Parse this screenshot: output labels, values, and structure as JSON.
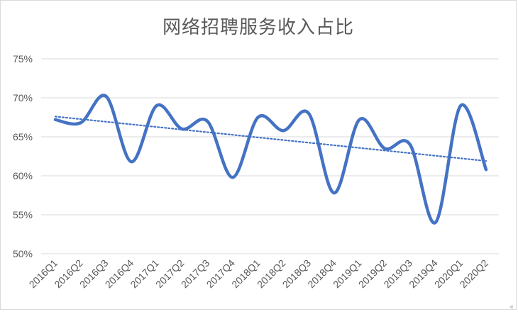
{
  "chart_data": {
    "type": "line",
    "title": "网络招聘服务收入占比",
    "xlabel": "",
    "ylabel": "",
    "categories": [
      "2016Q1",
      "2016Q2",
      "2016Q3",
      "2016Q4",
      "2017Q1",
      "2017Q2",
      "2017Q3",
      "2017Q4",
      "2018Q1",
      "2018Q2",
      "2018Q3",
      "2018Q4",
      "2019Q1",
      "2019Q2",
      "2019Q3",
      "2019Q4",
      "2020Q1",
      "2020Q2"
    ],
    "series": [
      {
        "values": [
          67.2,
          66.8,
          70.2,
          61.8,
          69.0,
          66.0,
          67.0,
          59.8,
          67.5,
          65.8,
          68.0,
          57.8,
          67.2,
          63.5,
          64.0,
          54.0,
          69.0,
          60.8
        ],
        "color": "#4472c4",
        "style": "smooth"
      }
    ],
    "trendline": {
      "type": "linear",
      "start": 67.6,
      "end": 61.9,
      "color": "#4472c4",
      "style": "dotted"
    },
    "yticks": [
      "50%",
      "55%",
      "60%",
      "65%",
      "70%",
      "75%"
    ],
    "ytick_values": [
      50,
      55,
      60,
      65,
      70,
      75
    ],
    "ylim": [
      50,
      75
    ],
    "grid": true,
    "legend": "none"
  },
  "corner_mark": "«"
}
